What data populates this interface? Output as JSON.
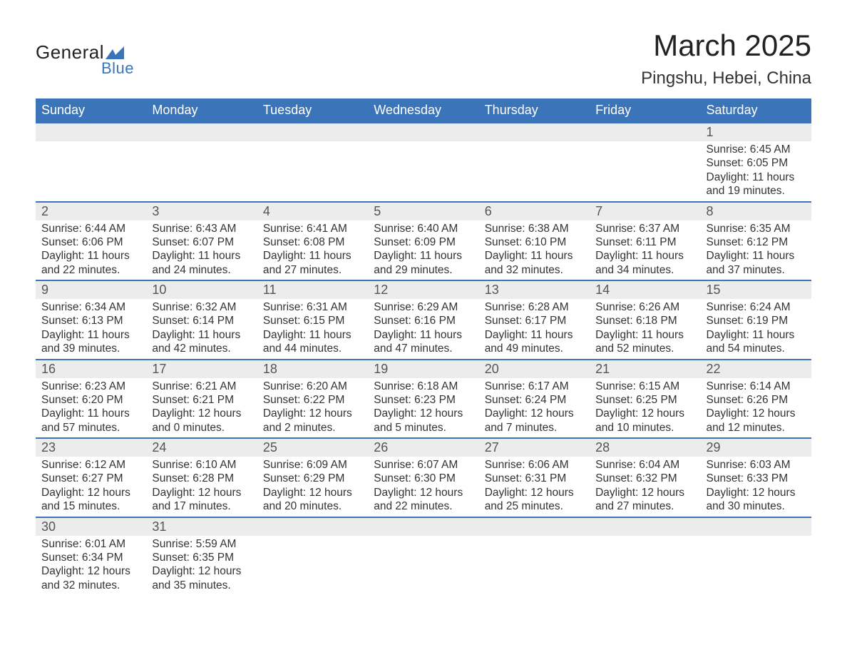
{
  "brand": {
    "name_main": "General",
    "name_sub": "Blue",
    "mark_color": "#3b74b9"
  },
  "title": {
    "month": "March 2025",
    "location": "Pingshu, Hebei, China"
  },
  "style": {
    "header_bg": "#3b74b9",
    "header_fg": "#ffffff",
    "daynum_bg": "#ececec",
    "row_divider": "#3b74b9",
    "body_fg": "#333333",
    "page_bg": "#ffffff",
    "font_family": "Arial",
    "month_title_fontsize": 42,
    "location_fontsize": 24,
    "header_fontsize": 18,
    "daynum_fontsize": 18,
    "detail_fontsize": 15.5
  },
  "weekdays": [
    "Sunday",
    "Monday",
    "Tuesday",
    "Wednesday",
    "Thursday",
    "Friday",
    "Saturday"
  ],
  "weeks": [
    [
      {
        "day": "",
        "sunrise": "",
        "sunset": "",
        "daylight": ""
      },
      {
        "day": "",
        "sunrise": "",
        "sunset": "",
        "daylight": ""
      },
      {
        "day": "",
        "sunrise": "",
        "sunset": "",
        "daylight": ""
      },
      {
        "day": "",
        "sunrise": "",
        "sunset": "",
        "daylight": ""
      },
      {
        "day": "",
        "sunrise": "",
        "sunset": "",
        "daylight": ""
      },
      {
        "day": "",
        "sunrise": "",
        "sunset": "",
        "daylight": ""
      },
      {
        "day": "1",
        "sunrise": "Sunrise: 6:45 AM",
        "sunset": "Sunset: 6:05 PM",
        "daylight": "Daylight: 11 hours and 19 minutes."
      }
    ],
    [
      {
        "day": "2",
        "sunrise": "Sunrise: 6:44 AM",
        "sunset": "Sunset: 6:06 PM",
        "daylight": "Daylight: 11 hours and 22 minutes."
      },
      {
        "day": "3",
        "sunrise": "Sunrise: 6:43 AM",
        "sunset": "Sunset: 6:07 PM",
        "daylight": "Daylight: 11 hours and 24 minutes."
      },
      {
        "day": "4",
        "sunrise": "Sunrise: 6:41 AM",
        "sunset": "Sunset: 6:08 PM",
        "daylight": "Daylight: 11 hours and 27 minutes."
      },
      {
        "day": "5",
        "sunrise": "Sunrise: 6:40 AM",
        "sunset": "Sunset: 6:09 PM",
        "daylight": "Daylight: 11 hours and 29 minutes."
      },
      {
        "day": "6",
        "sunrise": "Sunrise: 6:38 AM",
        "sunset": "Sunset: 6:10 PM",
        "daylight": "Daylight: 11 hours and 32 minutes."
      },
      {
        "day": "7",
        "sunrise": "Sunrise: 6:37 AM",
        "sunset": "Sunset: 6:11 PM",
        "daylight": "Daylight: 11 hours and 34 minutes."
      },
      {
        "day": "8",
        "sunrise": "Sunrise: 6:35 AM",
        "sunset": "Sunset: 6:12 PM",
        "daylight": "Daylight: 11 hours and 37 minutes."
      }
    ],
    [
      {
        "day": "9",
        "sunrise": "Sunrise: 6:34 AM",
        "sunset": "Sunset: 6:13 PM",
        "daylight": "Daylight: 11 hours and 39 minutes."
      },
      {
        "day": "10",
        "sunrise": "Sunrise: 6:32 AM",
        "sunset": "Sunset: 6:14 PM",
        "daylight": "Daylight: 11 hours and 42 minutes."
      },
      {
        "day": "11",
        "sunrise": "Sunrise: 6:31 AM",
        "sunset": "Sunset: 6:15 PM",
        "daylight": "Daylight: 11 hours and 44 minutes."
      },
      {
        "day": "12",
        "sunrise": "Sunrise: 6:29 AM",
        "sunset": "Sunset: 6:16 PM",
        "daylight": "Daylight: 11 hours and 47 minutes."
      },
      {
        "day": "13",
        "sunrise": "Sunrise: 6:28 AM",
        "sunset": "Sunset: 6:17 PM",
        "daylight": "Daylight: 11 hours and 49 minutes."
      },
      {
        "day": "14",
        "sunrise": "Sunrise: 6:26 AM",
        "sunset": "Sunset: 6:18 PM",
        "daylight": "Daylight: 11 hours and 52 minutes."
      },
      {
        "day": "15",
        "sunrise": "Sunrise: 6:24 AM",
        "sunset": "Sunset: 6:19 PM",
        "daylight": "Daylight: 11 hours and 54 minutes."
      }
    ],
    [
      {
        "day": "16",
        "sunrise": "Sunrise: 6:23 AM",
        "sunset": "Sunset: 6:20 PM",
        "daylight": "Daylight: 11 hours and 57 minutes."
      },
      {
        "day": "17",
        "sunrise": "Sunrise: 6:21 AM",
        "sunset": "Sunset: 6:21 PM",
        "daylight": "Daylight: 12 hours and 0 minutes."
      },
      {
        "day": "18",
        "sunrise": "Sunrise: 6:20 AM",
        "sunset": "Sunset: 6:22 PM",
        "daylight": "Daylight: 12 hours and 2 minutes."
      },
      {
        "day": "19",
        "sunrise": "Sunrise: 6:18 AM",
        "sunset": "Sunset: 6:23 PM",
        "daylight": "Daylight: 12 hours and 5 minutes."
      },
      {
        "day": "20",
        "sunrise": "Sunrise: 6:17 AM",
        "sunset": "Sunset: 6:24 PM",
        "daylight": "Daylight: 12 hours and 7 minutes."
      },
      {
        "day": "21",
        "sunrise": "Sunrise: 6:15 AM",
        "sunset": "Sunset: 6:25 PM",
        "daylight": "Daylight: 12 hours and 10 minutes."
      },
      {
        "day": "22",
        "sunrise": "Sunrise: 6:14 AM",
        "sunset": "Sunset: 6:26 PM",
        "daylight": "Daylight: 12 hours and 12 minutes."
      }
    ],
    [
      {
        "day": "23",
        "sunrise": "Sunrise: 6:12 AM",
        "sunset": "Sunset: 6:27 PM",
        "daylight": "Daylight: 12 hours and 15 minutes."
      },
      {
        "day": "24",
        "sunrise": "Sunrise: 6:10 AM",
        "sunset": "Sunset: 6:28 PM",
        "daylight": "Daylight: 12 hours and 17 minutes."
      },
      {
        "day": "25",
        "sunrise": "Sunrise: 6:09 AM",
        "sunset": "Sunset: 6:29 PM",
        "daylight": "Daylight: 12 hours and 20 minutes."
      },
      {
        "day": "26",
        "sunrise": "Sunrise: 6:07 AM",
        "sunset": "Sunset: 6:30 PM",
        "daylight": "Daylight: 12 hours and 22 minutes."
      },
      {
        "day": "27",
        "sunrise": "Sunrise: 6:06 AM",
        "sunset": "Sunset: 6:31 PM",
        "daylight": "Daylight: 12 hours and 25 minutes."
      },
      {
        "day": "28",
        "sunrise": "Sunrise: 6:04 AM",
        "sunset": "Sunset: 6:32 PM",
        "daylight": "Daylight: 12 hours and 27 minutes."
      },
      {
        "day": "29",
        "sunrise": "Sunrise: 6:03 AM",
        "sunset": "Sunset: 6:33 PM",
        "daylight": "Daylight: 12 hours and 30 minutes."
      }
    ],
    [
      {
        "day": "30",
        "sunrise": "Sunrise: 6:01 AM",
        "sunset": "Sunset: 6:34 PM",
        "daylight": "Daylight: 12 hours and 32 minutes."
      },
      {
        "day": "31",
        "sunrise": "Sunrise: 5:59 AM",
        "sunset": "Sunset: 6:35 PM",
        "daylight": "Daylight: 12 hours and 35 minutes."
      },
      {
        "day": "",
        "sunrise": "",
        "sunset": "",
        "daylight": ""
      },
      {
        "day": "",
        "sunrise": "",
        "sunset": "",
        "daylight": ""
      },
      {
        "day": "",
        "sunrise": "",
        "sunset": "",
        "daylight": ""
      },
      {
        "day": "",
        "sunrise": "",
        "sunset": "",
        "daylight": ""
      },
      {
        "day": "",
        "sunrise": "",
        "sunset": "",
        "daylight": ""
      }
    ]
  ]
}
